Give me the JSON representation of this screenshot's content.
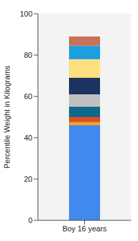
{
  "chart_data": {
    "type": "bar",
    "stacked": true,
    "categories": [
      "Boy 16 years"
    ],
    "y_label": "Percentile Weight in Kilograms",
    "ylim": [
      0,
      100
    ],
    "yticks": [
      0,
      20,
      40,
      60,
      80,
      100
    ],
    "series": [
      {
        "color": "#4189ee",
        "values": [
          46
        ]
      },
      {
        "color": "#f0a030",
        "values": [
          1.5
        ]
      },
      {
        "color": "#e0501a",
        "values": [
          2.5
        ]
      },
      {
        "color": "#10698c",
        "values": [
          5
        ]
      },
      {
        "color": "#c0c0c0",
        "values": [
          6
        ]
      },
      {
        "color": "#1c3461",
        "values": [
          8
        ]
      },
      {
        "color": "#ffe080",
        "values": [
          9
        ]
      },
      {
        "color": "#1b9fe0",
        "values": [
          6.5
        ]
      },
      {
        "color": "#c87058",
        "values": [
          4.5
        ]
      }
    ]
  }
}
